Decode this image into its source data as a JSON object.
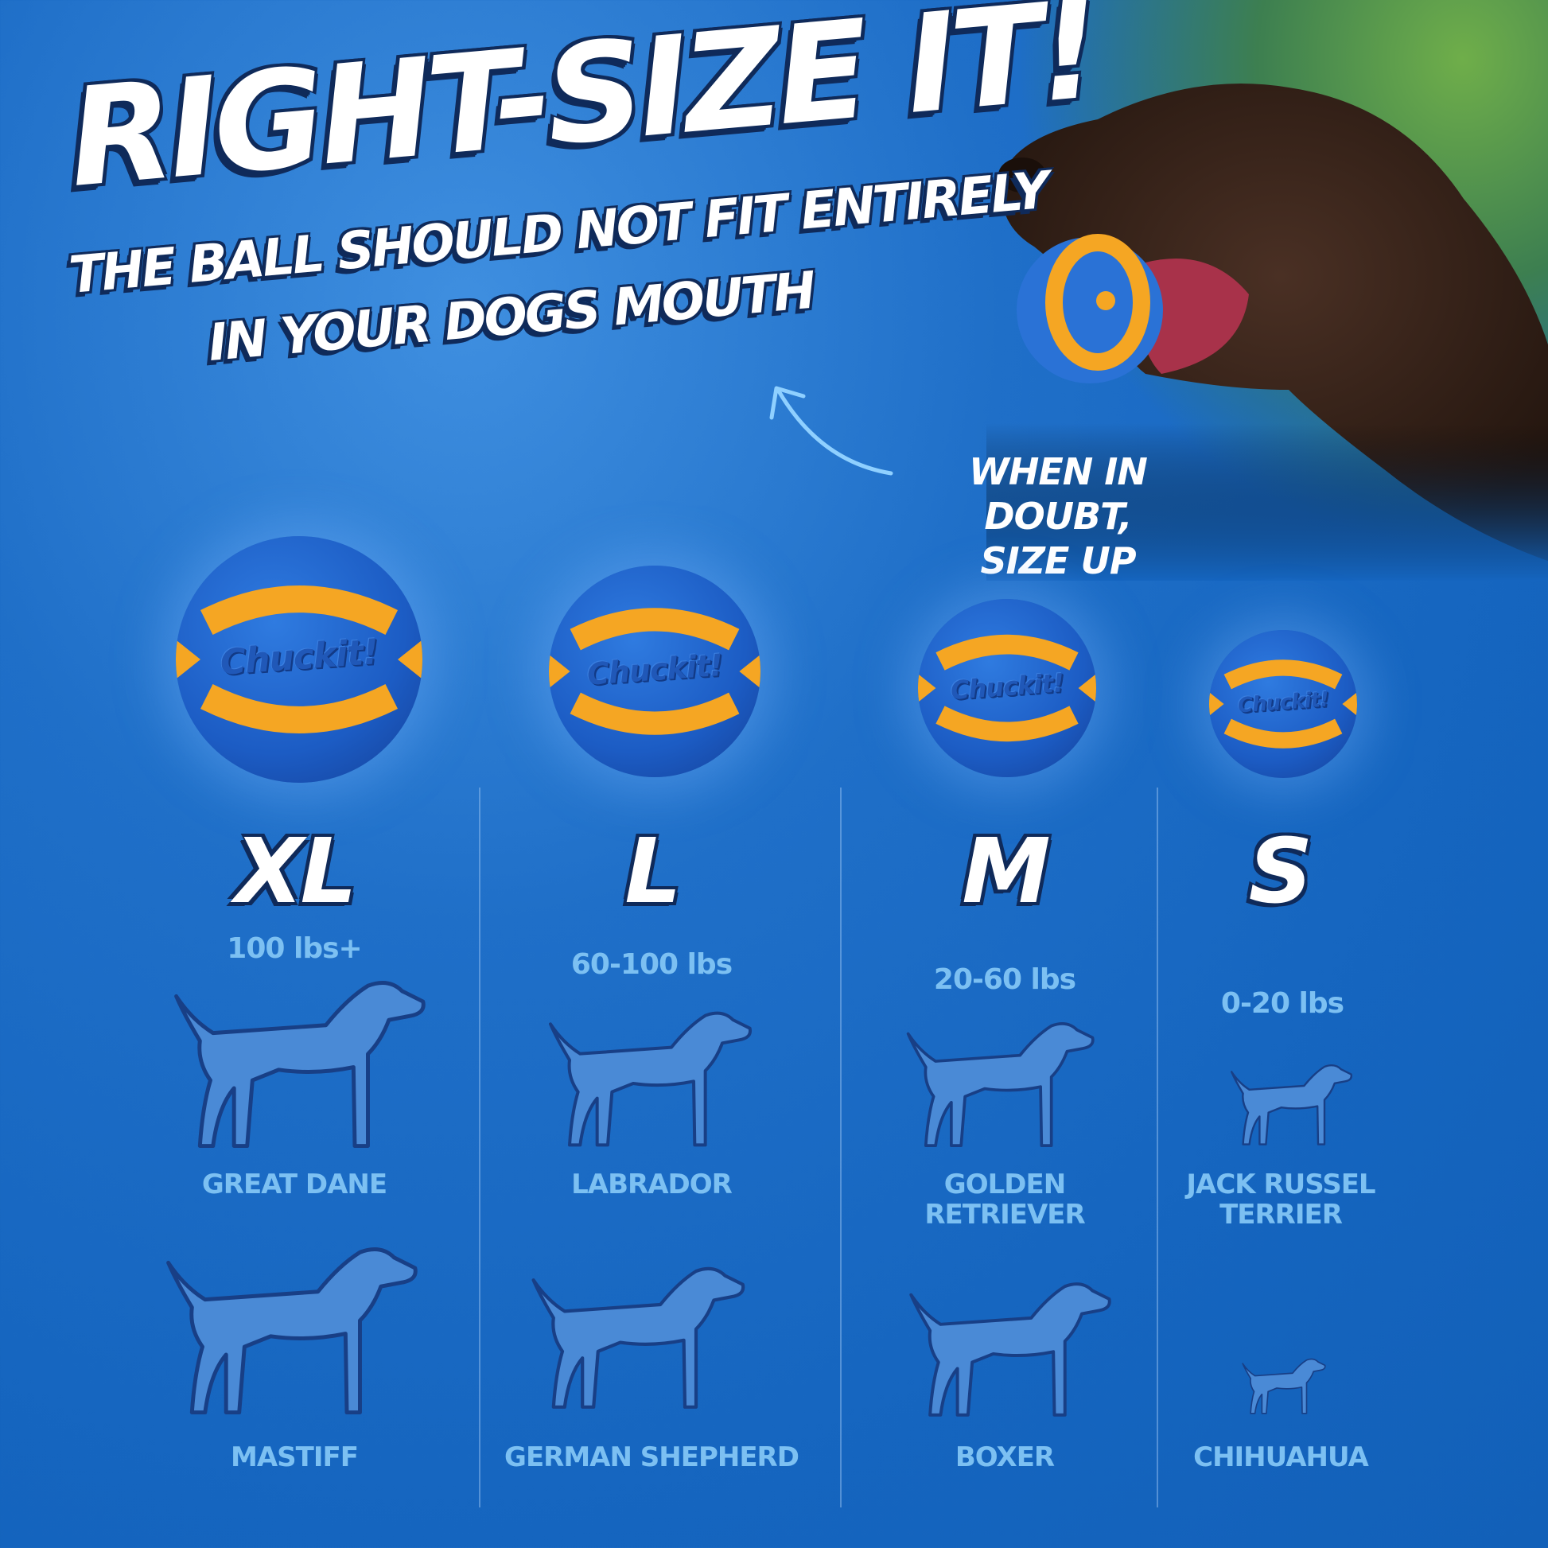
{
  "header": {
    "title": "RIGHT-SIZE IT!",
    "subtitle_line1": "THE BALL SHOULD NOT FIT ENTIRELY",
    "subtitle_line2": "IN YOUR DOGS MOUTH"
  },
  "callout": {
    "line1": "WHEN IN DOUBT,",
    "line2": "SIZE UP",
    "icon": "curved-arrow-icon"
  },
  "brand_logo_text": "Chuckit!",
  "colors": {
    "background": "#1565bf",
    "ball_blue": "#1c5cc4",
    "ball_orange": "#f5a623",
    "label_blue": "#7cc0f2",
    "silhouette": "#4a8ad6",
    "outline": "#0f2a5a"
  },
  "sizes": [
    {
      "size": "XL",
      "weight": "100 lbs+",
      "breeds": [
        [
          "GREAT DANE"
        ],
        [
          "MASTIFF"
        ]
      ]
    },
    {
      "size": "L",
      "weight": "60-100 lbs",
      "breeds": [
        [
          "LABRADOR"
        ],
        [
          "GERMAN SHEPHERD"
        ]
      ]
    },
    {
      "size": "M",
      "weight": "20-60 lbs",
      "breeds": [
        [
          "GOLDEN",
          "RETRIEVER"
        ],
        [
          "BOXER"
        ]
      ]
    },
    {
      "size": "S",
      "weight": "0-20 lbs",
      "breeds": [
        [
          "JACK RUSSEL",
          "TERRIER"
        ],
        [
          "CHIHUAHUA"
        ]
      ]
    }
  ]
}
